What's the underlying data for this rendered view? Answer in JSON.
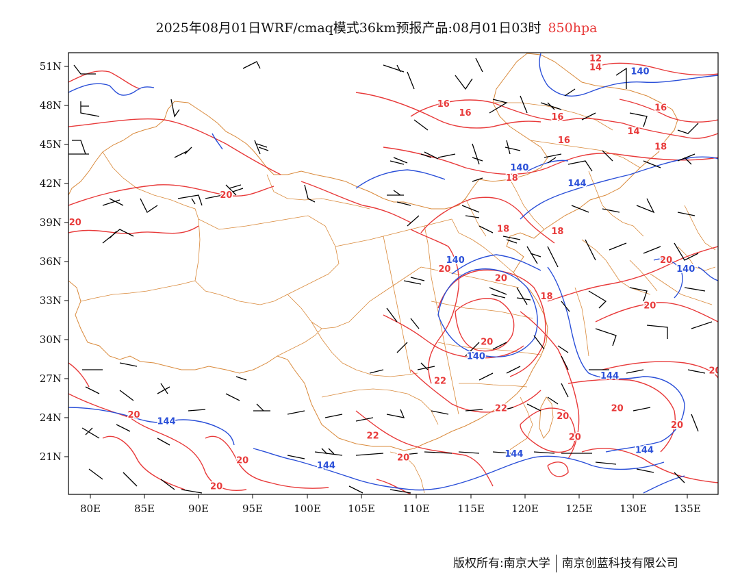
{
  "title": {
    "main": "2025年08月01日WRF/cmaq模式36km预报产品:08月01日03时",
    "level": "850hpa"
  },
  "axes": {
    "lat_labels": [
      "51N",
      "48N",
      "45N",
      "42N",
      "39N",
      "36N",
      "33N",
      "30N",
      "27N",
      "24N",
      "21N"
    ],
    "lon_labels": [
      "80E",
      "85E",
      "90E",
      "95E",
      "100E",
      "105E",
      "110E",
      "115E",
      "120E",
      "125E",
      "130E",
      "135E"
    ]
  },
  "colors": {
    "temperature": "#e83a3a",
    "height": "#2a4fd8",
    "boundary": "#d9893a",
    "wind": "#000000"
  },
  "temperature_labels": [
    {
      "text": "12",
      "lon": 126.5,
      "lat": 51.4
    },
    {
      "text": "14",
      "lon": 126.5,
      "lat": 50.7
    },
    {
      "text": "16",
      "lon": 112.5,
      "lat": 47.9
    },
    {
      "text": "16",
      "lon": 114.5,
      "lat": 47.2
    },
    {
      "text": "16",
      "lon": 123.0,
      "lat": 46.9
    },
    {
      "text": "16",
      "lon": 132.5,
      "lat": 47.6
    },
    {
      "text": "14",
      "lon": 130.0,
      "lat": 45.8
    },
    {
      "text": "16",
      "lon": 123.6,
      "lat": 45.1
    },
    {
      "text": "18",
      "lon": 132.5,
      "lat": 44.6
    },
    {
      "text": "18",
      "lon": 118.8,
      "lat": 42.2
    },
    {
      "text": "20",
      "lon": 92.5,
      "lat": 40.9
    },
    {
      "text": "20",
      "lon": 78.6,
      "lat": 38.8
    },
    {
      "text": "18",
      "lon": 118.0,
      "lat": 38.3
    },
    {
      "text": "18",
      "lon": 123.0,
      "lat": 38.1
    },
    {
      "text": "20",
      "lon": 133.0,
      "lat": 35.9
    },
    {
      "text": "20",
      "lon": 112.6,
      "lat": 35.2
    },
    {
      "text": "20",
      "lon": 117.8,
      "lat": 34.5
    },
    {
      "text": "18",
      "lon": 122.0,
      "lat": 33.1
    },
    {
      "text": "20",
      "lon": 131.5,
      "lat": 32.4
    },
    {
      "text": "20",
      "lon": 116.5,
      "lat": 29.6
    },
    {
      "text": "22",
      "lon": 112.2,
      "lat": 26.6
    },
    {
      "text": "22",
      "lon": 117.8,
      "lat": 24.5
    },
    {
      "text": "20",
      "lon": 123.5,
      "lat": 23.9
    },
    {
      "text": "20",
      "lon": 128.5,
      "lat": 24.5
    },
    {
      "text": "20",
      "lon": 137.5,
      "lat": 27.4
    },
    {
      "text": "20",
      "lon": 134.0,
      "lat": 23.2
    },
    {
      "text": "20",
      "lon": 84.0,
      "lat": 24.0
    },
    {
      "text": "22",
      "lon": 106.0,
      "lat": 22.4
    },
    {
      "text": "20",
      "lon": 124.6,
      "lat": 22.3
    },
    {
      "text": "20",
      "lon": 94.0,
      "lat": 20.5
    },
    {
      "text": "20",
      "lon": 108.8,
      "lat": 20.7
    },
    {
      "text": "20",
      "lon": 91.6,
      "lat": 18.5
    }
  ],
  "height_labels": [
    {
      "text": "140",
      "lon": 130.6,
      "lat": 50.4
    },
    {
      "text": "140",
      "lon": 119.5,
      "lat": 43.0
    },
    {
      "text": "144",
      "lon": 124.8,
      "lat": 41.8
    },
    {
      "text": "140",
      "lon": 113.6,
      "lat": 35.9
    },
    {
      "text": "140",
      "lon": 134.8,
      "lat": 35.2
    },
    {
      "text": "140",
      "lon": 115.5,
      "lat": 28.5
    },
    {
      "text": "144",
      "lon": 127.8,
      "lat": 27.0
    },
    {
      "text": "144",
      "lon": 87.0,
      "lat": 23.5
    },
    {
      "text": "144",
      "lon": 119.0,
      "lat": 21.0
    },
    {
      "text": "144",
      "lon": 131.0,
      "lat": 21.3
    },
    {
      "text": "144",
      "lon": 101.7,
      "lat": 20.1
    }
  ],
  "footer": {
    "left": "版权所有:南京大学",
    "right": "南京创蓝科技有限公司"
  }
}
